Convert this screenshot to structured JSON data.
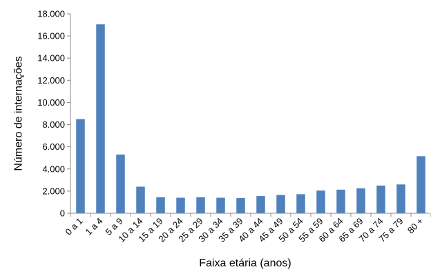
{
  "chart_data": {
    "type": "bar",
    "title": "",
    "xlabel": "Faixa etária (anos)",
    "ylabel": "Número de internações",
    "categories": [
      "0 a 1",
      "1 a 4",
      "5 a 9",
      "10 a 14",
      "15 a 19",
      "20 a 24",
      "25 a 29",
      "30 a 34",
      "35 a 39",
      "40 a 44",
      "45 a 49",
      "50 a 54",
      "55 a 59",
      "60 a 64",
      "65 a 69",
      "70 a 74",
      "75 a 79",
      "80 +"
    ],
    "values": [
      8500,
      17050,
      5300,
      2400,
      1450,
      1400,
      1450,
      1400,
      1380,
      1550,
      1650,
      1720,
      2050,
      2130,
      2250,
      2500,
      2600,
      5150
    ],
    "ylim": [
      0,
      18000
    ],
    "yticks": [
      "0",
      "2.000",
      "4.000",
      "6.000",
      "8.000",
      "10.000",
      "12.000",
      "14.000",
      "16.000",
      "18.000"
    ],
    "bar_color": "#4f81bd",
    "grid": false,
    "legend": "none"
  }
}
